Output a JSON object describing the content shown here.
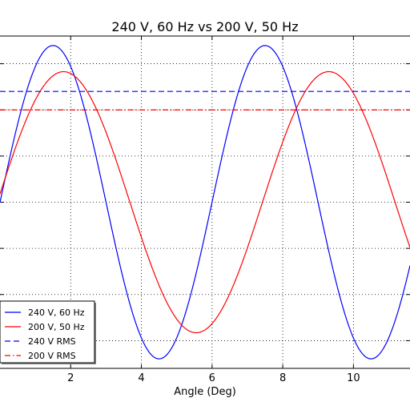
{
  "chart_data": {
    "type": "line",
    "title": "240 V, 60 Hz vs 200 V, 50 Hz",
    "xlabel": "Angle (Deg)",
    "ylabel": "",
    "xlim": [
      0,
      11.6
    ],
    "ylim": [
      -360,
      360
    ],
    "x_ticks": [
      2,
      4,
      6,
      8,
      10
    ],
    "grid": true,
    "legend_position": "lower-left",
    "series": [
      {
        "name": "240 V, 60 Hz",
        "color": "#0000ff",
        "style": "solid",
        "amplitude": 339.4,
        "frequency_per_unit": 0.1667,
        "points": [
          [
            0,
            -13
          ],
          [
            0.5,
            161
          ],
          [
            1,
            289
          ],
          [
            1.5,
            339
          ],
          [
            2,
            294
          ],
          [
            2.5,
            170
          ],
          [
            3,
            0
          ],
          [
            3.5,
            -170
          ],
          [
            4,
            -294
          ],
          [
            4.5,
            -339
          ],
          [
            5,
            -294
          ],
          [
            5.5,
            -170
          ],
          [
            6,
            0
          ],
          [
            6.5,
            170
          ],
          [
            7,
            294
          ],
          [
            7.5,
            339
          ],
          [
            8,
            294
          ],
          [
            8.5,
            170
          ],
          [
            9,
            0
          ],
          [
            9.5,
            -170
          ],
          [
            10,
            -294
          ],
          [
            10.5,
            -339
          ],
          [
            11,
            -294
          ],
          [
            11.5,
            -170
          ],
          [
            11.6,
            -130
          ]
        ]
      },
      {
        "name": "200 V, 50 Hz",
        "color": "#ff0000",
        "style": "solid",
        "amplitude": 282.8,
        "frequency_per_unit": 0.1333,
        "points": [
          [
            0,
            -35
          ],
          [
            0.5,
            90
          ],
          [
            1,
            200
          ],
          [
            1.5,
            265
          ],
          [
            1.8,
            282
          ],
          [
            2,
            279
          ],
          [
            2.5,
            245
          ],
          [
            3,
            172
          ],
          [
            3.5,
            76
          ],
          [
            4,
            -35
          ],
          [
            4.5,
            -141
          ],
          [
            5,
            -229
          ],
          [
            5.4,
            -282
          ],
          [
            5.5,
            -279
          ],
          [
            6,
            -245
          ],
          [
            6.5,
            -172
          ],
          [
            7,
            -76
          ],
          [
            7.5,
            35
          ],
          [
            8,
            141
          ],
          [
            8.5,
            229
          ],
          [
            9,
            282
          ],
          [
            9.5,
            245
          ],
          [
            10,
            172
          ],
          [
            10.5,
            76
          ],
          [
            11,
            -35
          ],
          [
            11.6,
            -168
          ]
        ]
      },
      {
        "name": "240 V RMS",
        "color": "#0000ff",
        "style": "dashed",
        "value": 240
      },
      {
        "name": "200 V RMS",
        "color": "#ff0000",
        "style": "dashdot",
        "value": 200
      }
    ]
  }
}
